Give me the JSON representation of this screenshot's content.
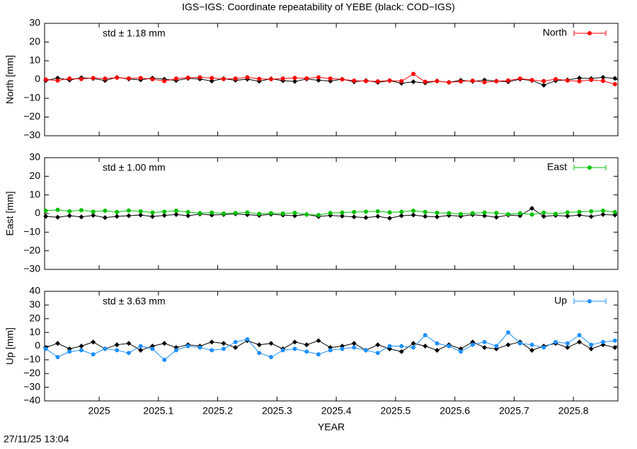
{
  "title": "IGS−IGS: Coordinate repeatability of YEBE (black: COD−IGS)",
  "xlabel": "YEAR",
  "timestamp": "27/11/25 13:04",
  "chart_data": [
    {
      "type": "line",
      "ylabel": "North [mm]",
      "annotation": "std ± 1.18 mm",
      "annotation_color": "#ff0000",
      "xlim": [
        2024.908,
        2025.875
      ],
      "xticks": [
        2025,
        2025.1,
        2025.2,
        2025.3,
        2025.4,
        2025.5,
        2025.6,
        2025.7,
        2025.8
      ],
      "ylim": [
        -30,
        30
      ],
      "yticks": [
        {
          "value": -30,
          "label": "−30"
        },
        {
          "value": -20,
          "label": "−20"
        },
        {
          "value": -10,
          "label": "−10"
        },
        0,
        10,
        20,
        30
      ],
      "legend": "top-right",
      "x": [
        2024.91,
        2024.93,
        2024.95,
        2024.97,
        2024.99,
        2025.01,
        2025.03,
        2025.05,
        2025.07,
        2025.09,
        2025.11,
        2025.13,
        2025.15,
        2025.17,
        2025.19,
        2025.21,
        2025.23,
        2025.25,
        2025.27,
        2025.29,
        2025.31,
        2025.33,
        2025.35,
        2025.37,
        2025.39,
        2025.41,
        2025.43,
        2025.45,
        2025.47,
        2025.49,
        2025.51,
        2025.53,
        2025.55,
        2025.57,
        2025.59,
        2025.61,
        2025.63,
        2025.65,
        2025.67,
        2025.69,
        2025.71,
        2025.73,
        2025.75,
        2025.77,
        2025.79,
        2025.81,
        2025.83,
        2025.85,
        2025.87
      ],
      "series": [
        {
          "color": "#000000",
          "marker": "diamond",
          "values": [
            -0.5,
            0.8,
            -0.3,
            1,
            0.5,
            -0.5,
            1.2,
            0.3,
            -0.2,
            0.8,
            0.2,
            -0.5,
            0.6,
            0.3,
            -0.8,
            0.5,
            -0.4,
            0.2,
            -0.9,
            0.4,
            -0.6,
            -1,
            0.3,
            -0.4,
            -0.8,
            0.2,
            -1.2,
            -0.5,
            -1.5,
            -0.6,
            -2,
            -1.2,
            -1.8,
            -0.8,
            -1.5,
            -0.4,
            -1,
            -0.3,
            -0.8,
            -1.2,
            0.2,
            -0.5,
            -3,
            -0.6,
            -0.2,
            0.8,
            0.5,
            1.2,
            0.6
          ]
        },
        {
          "name": "North",
          "color": "#ff0000",
          "marker": "circle",
          "values": [
            0,
            -0.5,
            0.5,
            0.3,
            0.8,
            0.5,
            1,
            0.6,
            0.8,
            0.2,
            -0.8,
            0.5,
            1,
            1.2,
            0.8,
            0.3,
            0.5,
            1.2,
            0.4,
            0.2,
            0.5,
            0.9,
            0.6,
            1.2,
            0.5,
            0.1,
            -0.6,
            -0.8,
            -1,
            -0.5,
            -0.9,
            3,
            -1.2,
            -0.8,
            -1.5,
            -1,
            -0.6,
            -1.4,
            -0.9,
            -0.5,
            0.5,
            -0.3,
            -0.8,
            0.2,
            -0.5,
            -0.9,
            -0.2,
            -0.7,
            -2.5
          ]
        }
      ]
    },
    {
      "type": "line",
      "ylabel": "East [mm]",
      "annotation": "std ± 1.00 mm",
      "annotation_color": "#00c000",
      "xlim": [
        2024.908,
        2025.875
      ],
      "xticks": [
        2025,
        2025.1,
        2025.2,
        2025.3,
        2025.4,
        2025.5,
        2025.6,
        2025.7,
        2025.8
      ],
      "ylim": [
        -30,
        30
      ],
      "yticks": [
        {
          "value": -30,
          "label": "−30"
        },
        {
          "value": -20,
          "label": "−20"
        },
        {
          "value": -10,
          "label": "−10"
        },
        0,
        10,
        20,
        30
      ],
      "legend": "top-right",
      "x": [
        2024.91,
        2024.93,
        2024.95,
        2024.97,
        2024.99,
        2025.01,
        2025.03,
        2025.05,
        2025.07,
        2025.09,
        2025.11,
        2025.13,
        2025.15,
        2025.17,
        2025.19,
        2025.21,
        2025.23,
        2025.25,
        2025.27,
        2025.29,
        2025.31,
        2025.33,
        2025.35,
        2025.37,
        2025.39,
        2025.41,
        2025.43,
        2025.45,
        2025.47,
        2025.49,
        2025.51,
        2025.53,
        2025.55,
        2025.57,
        2025.59,
        2025.61,
        2025.63,
        2025.65,
        2025.67,
        2025.69,
        2025.71,
        2025.73,
        2025.75,
        2025.77,
        2025.79,
        2025.81,
        2025.83,
        2025.85,
        2025.87
      ],
      "series": [
        {
          "color": "#000000",
          "marker": "diamond",
          "values": [
            -1.5,
            -2,
            -1.2,
            -1.8,
            -1,
            -2.2,
            -1.5,
            -1.2,
            -0.8,
            -1.6,
            -1,
            -0.5,
            -1.2,
            -0.3,
            -0.8,
            -0.5,
            -0.2,
            -0.6,
            -1,
            -0.4,
            -0.8,
            -1.2,
            -0.5,
            -1.6,
            -1,
            -1.4,
            -1.8,
            -2.2,
            -1.5,
            -2.5,
            -1.2,
            -0.8,
            -1.5,
            -1.8,
            -1,
            -1.4,
            -0.6,
            -1.2,
            -2,
            -0.8,
            -1.2,
            2.8,
            -1.5,
            -1,
            -1.4,
            -0.8,
            -1.6,
            -0.5,
            -0.8
          ]
        },
        {
          "name": "East",
          "color": "#00c000",
          "marker": "circle",
          "values": [
            1.5,
            2,
            1.2,
            1.8,
            1,
            1.5,
            0.8,
            1.6,
            1.2,
            0.5,
            1,
            1.5,
            0.8,
            0.2,
            0.5,
            0,
            0.3,
            0.6,
            -0.2,
            0.2,
            0,
            0.4,
            -0.5,
            -0.8,
            0.3,
            0.5,
            0.8,
            1,
            1.2,
            0.6,
            0.9,
            1.5,
            0.8,
            0.4,
            0.2,
            -0.3,
            0.2,
            0.5,
            0.3,
            -0.4,
            0.1,
            -0.5,
            0.5,
            -0.2,
            0.6,
            0.9,
            1.2,
            1.5,
            0.8
          ]
        }
      ]
    },
    {
      "type": "line",
      "ylabel": "Up [mm]",
      "annotation": "std ± 3.63 mm",
      "annotation_color": "#1e90ff",
      "xlim": [
        2024.908,
        2025.875
      ],
      "xticks": [
        2025,
        2025.1,
        2025.2,
        2025.3,
        2025.4,
        2025.5,
        2025.6,
        2025.7,
        2025.8
      ],
      "ylim": [
        -40,
        40
      ],
      "yticks": [
        {
          "value": -40,
          "label": "−40"
        },
        {
          "value": -30,
          "label": "−30"
        },
        {
          "value": -20,
          "label": "−20"
        },
        {
          "value": -10,
          "label": "−10"
        },
        0,
        10,
        20,
        30,
        40
      ],
      "legend": "top-right",
      "x": [
        2024.91,
        2024.93,
        2024.95,
        2024.97,
        2024.99,
        2025.01,
        2025.03,
        2025.05,
        2025.07,
        2025.09,
        2025.11,
        2025.13,
        2025.15,
        2025.17,
        2025.19,
        2025.21,
        2025.23,
        2025.25,
        2025.27,
        2025.29,
        2025.31,
        2025.33,
        2025.35,
        2025.37,
        2025.39,
        2025.41,
        2025.43,
        2025.45,
        2025.47,
        2025.49,
        2025.51,
        2025.53,
        2025.55,
        2025.57,
        2025.59,
        2025.61,
        2025.63,
        2025.65,
        2025.67,
        2025.69,
        2025.71,
        2025.73,
        2025.75,
        2025.77,
        2025.79,
        2025.81,
        2025.83,
        2025.85,
        2025.87
      ],
      "series": [
        {
          "color": "#000000",
          "marker": "diamond",
          "values": [
            -1,
            2,
            -2,
            0,
            3,
            -2,
            1,
            2,
            -3,
            0,
            2,
            -1,
            1,
            0,
            3,
            2,
            -1,
            4,
            1,
            2,
            -2,
            3,
            1,
            4,
            -1,
            0,
            2,
            -3,
            1,
            -2,
            -4,
            2,
            0,
            -3,
            1,
            -2,
            3,
            -1,
            -2,
            1,
            3,
            -3,
            0,
            2,
            -1,
            3,
            -2,
            1,
            -1
          ]
        },
        {
          "name": "Up",
          "color": "#1e90ff",
          "marker": "circle",
          "values": [
            -2,
            -8,
            -4,
            -3,
            -6,
            -2,
            -3,
            -5,
            0,
            -2,
            -10,
            -3,
            0,
            -1,
            -3,
            -2,
            3,
            5,
            -5,
            -8,
            -3,
            -2,
            -4,
            -6,
            -3,
            -2,
            -1,
            -3,
            -5,
            0,
            0,
            -1,
            8,
            2,
            0,
            -4,
            1,
            3,
            0,
            10,
            2,
            1,
            -1,
            3,
            2,
            8,
            1,
            3,
            4
          ]
        }
      ]
    }
  ]
}
